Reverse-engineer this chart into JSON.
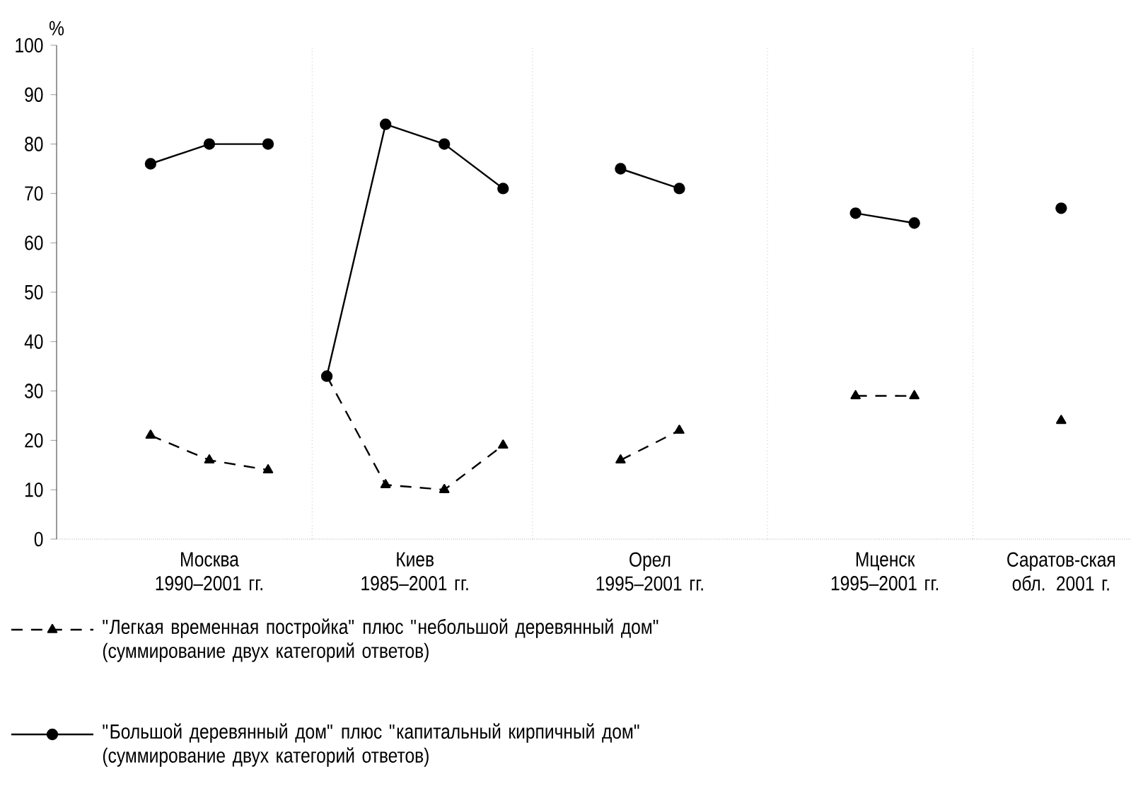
{
  "chart_data": {
    "type": "line",
    "ylabel": "%",
    "categories": [
      null,
      null,
      "Москва 1990–2001 гг.",
      null,
      null,
      null,
      null,
      null,
      null,
      "Киев 1985–2001 гг.",
      null,
      null,
      null,
      null,
      null,
      null,
      null,
      "Орел 1995–2001 гг.",
      null,
      null,
      null,
      null,
      null,
      null,
      null,
      "Мценск 1995–2001 гг.",
      null,
      null,
      null,
      null,
      null,
      "Саратов-ская обл. 2001 г."
    ],
    "series": [
      {
        "name": "\"Легкая временная постройка\" плюс \"небольшой деревянный дом\" (суммирование двух категорий ответов)",
        "color": "#000000",
        "marker": "triangle",
        "line_style": "dashed",
        "values": [
          21,
          null,
          16,
          null,
          14,
          null,
          null,
          null,
          null,
          null,
          null,
          null,
          null,
          null,
          null,
          null,
          null,
          null,
          null,
          null,
          null,
          null,
          null,
          null,
          null,
          null,
          null,
          null,
          null,
          null,
          null,
          null
        ]
      },
      {
        "name": "\"Большой деревянный дом\" плюс \"капитальный кирпичный дом\" (суммирование двух категорий ответов)",
        "color": "#000000",
        "marker": "circle",
        "line_style": "solid",
        "values": [
          76,
          null,
          80,
          null,
          80,
          null,
          null,
          null,
          null,
          null,
          null,
          null,
          null,
          null,
          null,
          null,
          null,
          null,
          null,
          null,
          null,
          null,
          null,
          null,
          null,
          null,
          null,
          null,
          null,
          null,
          null,
          null
        ]
      },
      {
        "color": "#000000",
        "marker": "circle",
        "line_style": "solid",
        "values": [
          null,
          null,
          null,
          null,
          null,
          null,
          33,
          null,
          84,
          null,
          80,
          null,
          71,
          null,
          null,
          null,
          null,
          null,
          null,
          null,
          null,
          null,
          null,
          null,
          null,
          null,
          null,
          null,
          null,
          null,
          null,
          null
        ]
      },
      {
        "color": "#000000",
        "marker": "triangle",
        "line_style": "dashed",
        "values": [
          null,
          null,
          null,
          null,
          null,
          null,
          33,
          null,
          11,
          null,
          10,
          null,
          19,
          null,
          null,
          null,
          null,
          null,
          null,
          null,
          null,
          null,
          null,
          null,
          null,
          null,
          null,
          null,
          null,
          null,
          null,
          null
        ]
      },
      {
        "color": "#000000",
        "marker": "triangle",
        "line_style": "dashed",
        "values": [
          null,
          null,
          null,
          null,
          null,
          null,
          null,
          null,
          null,
          null,
          null,
          null,
          null,
          null,
          null,
          null,
          16,
          null,
          22,
          null,
          null,
          null,
          null,
          null,
          null,
          null,
          null,
          null,
          null,
          null,
          null,
          null
        ]
      },
      {
        "color": "#000000",
        "marker": "circle",
        "line_style": "solid",
        "values": [
          null,
          null,
          null,
          null,
          null,
          null,
          null,
          null,
          null,
          null,
          null,
          null,
          null,
          null,
          null,
          null,
          75,
          null,
          71,
          null,
          null,
          null,
          null,
          null,
          null,
          null,
          null,
          null,
          null,
          null,
          null,
          null
        ]
      },
      {
        "color": "#000000",
        "marker": "triangle",
        "line_style": "dashed",
        "values": [
          null,
          null,
          null,
          null,
          null,
          null,
          null,
          null,
          null,
          null,
          null,
          null,
          null,
          null,
          null,
          null,
          null,
          null,
          null,
          null,
          null,
          null,
          null,
          null,
          29,
          null,
          29,
          null,
          null,
          null,
          null,
          null
        ]
      },
      {
        "color": "#000000",
        "marker": "circle",
        "line_style": "solid",
        "values": [
          null,
          null,
          null,
          null,
          null,
          null,
          null,
          null,
          null,
          null,
          null,
          null,
          null,
          null,
          null,
          null,
          null,
          null,
          null,
          null,
          null,
          null,
          null,
          null,
          66,
          null,
          64,
          null,
          null,
          null,
          null,
          null
        ]
      },
      {
        "color": "#000000",
        "marker": "triangle",
        "line_style": "dashed",
        "values": [
          null,
          null,
          null,
          null,
          null,
          null,
          null,
          null,
          null,
          null,
          null,
          null,
          null,
          null,
          null,
          null,
          null,
          null,
          null,
          null,
          null,
          null,
          null,
          null,
          null,
          null,
          null,
          null,
          null,
          null,
          null,
          24
        ]
      },
      {
        "color": "#000000",
        "marker": "circle",
        "line_style": "solid",
        "values": [
          null,
          null,
          null,
          null,
          null,
          null,
          null,
          null,
          null,
          null,
          null,
          null,
          null,
          null,
          null,
          null,
          null,
          null,
          null,
          null,
          null,
          null,
          null,
          null,
          null,
          null,
          null,
          null,
          null,
          null,
          null,
          67
        ]
      }
    ],
    "ylim": [
      0,
      100
    ],
    "yticks": [
      0,
      10,
      20,
      30,
      40,
      50,
      60,
      70,
      80,
      90,
      100
    ],
    "grid": "x",
    "legend": "bottom"
  }
}
